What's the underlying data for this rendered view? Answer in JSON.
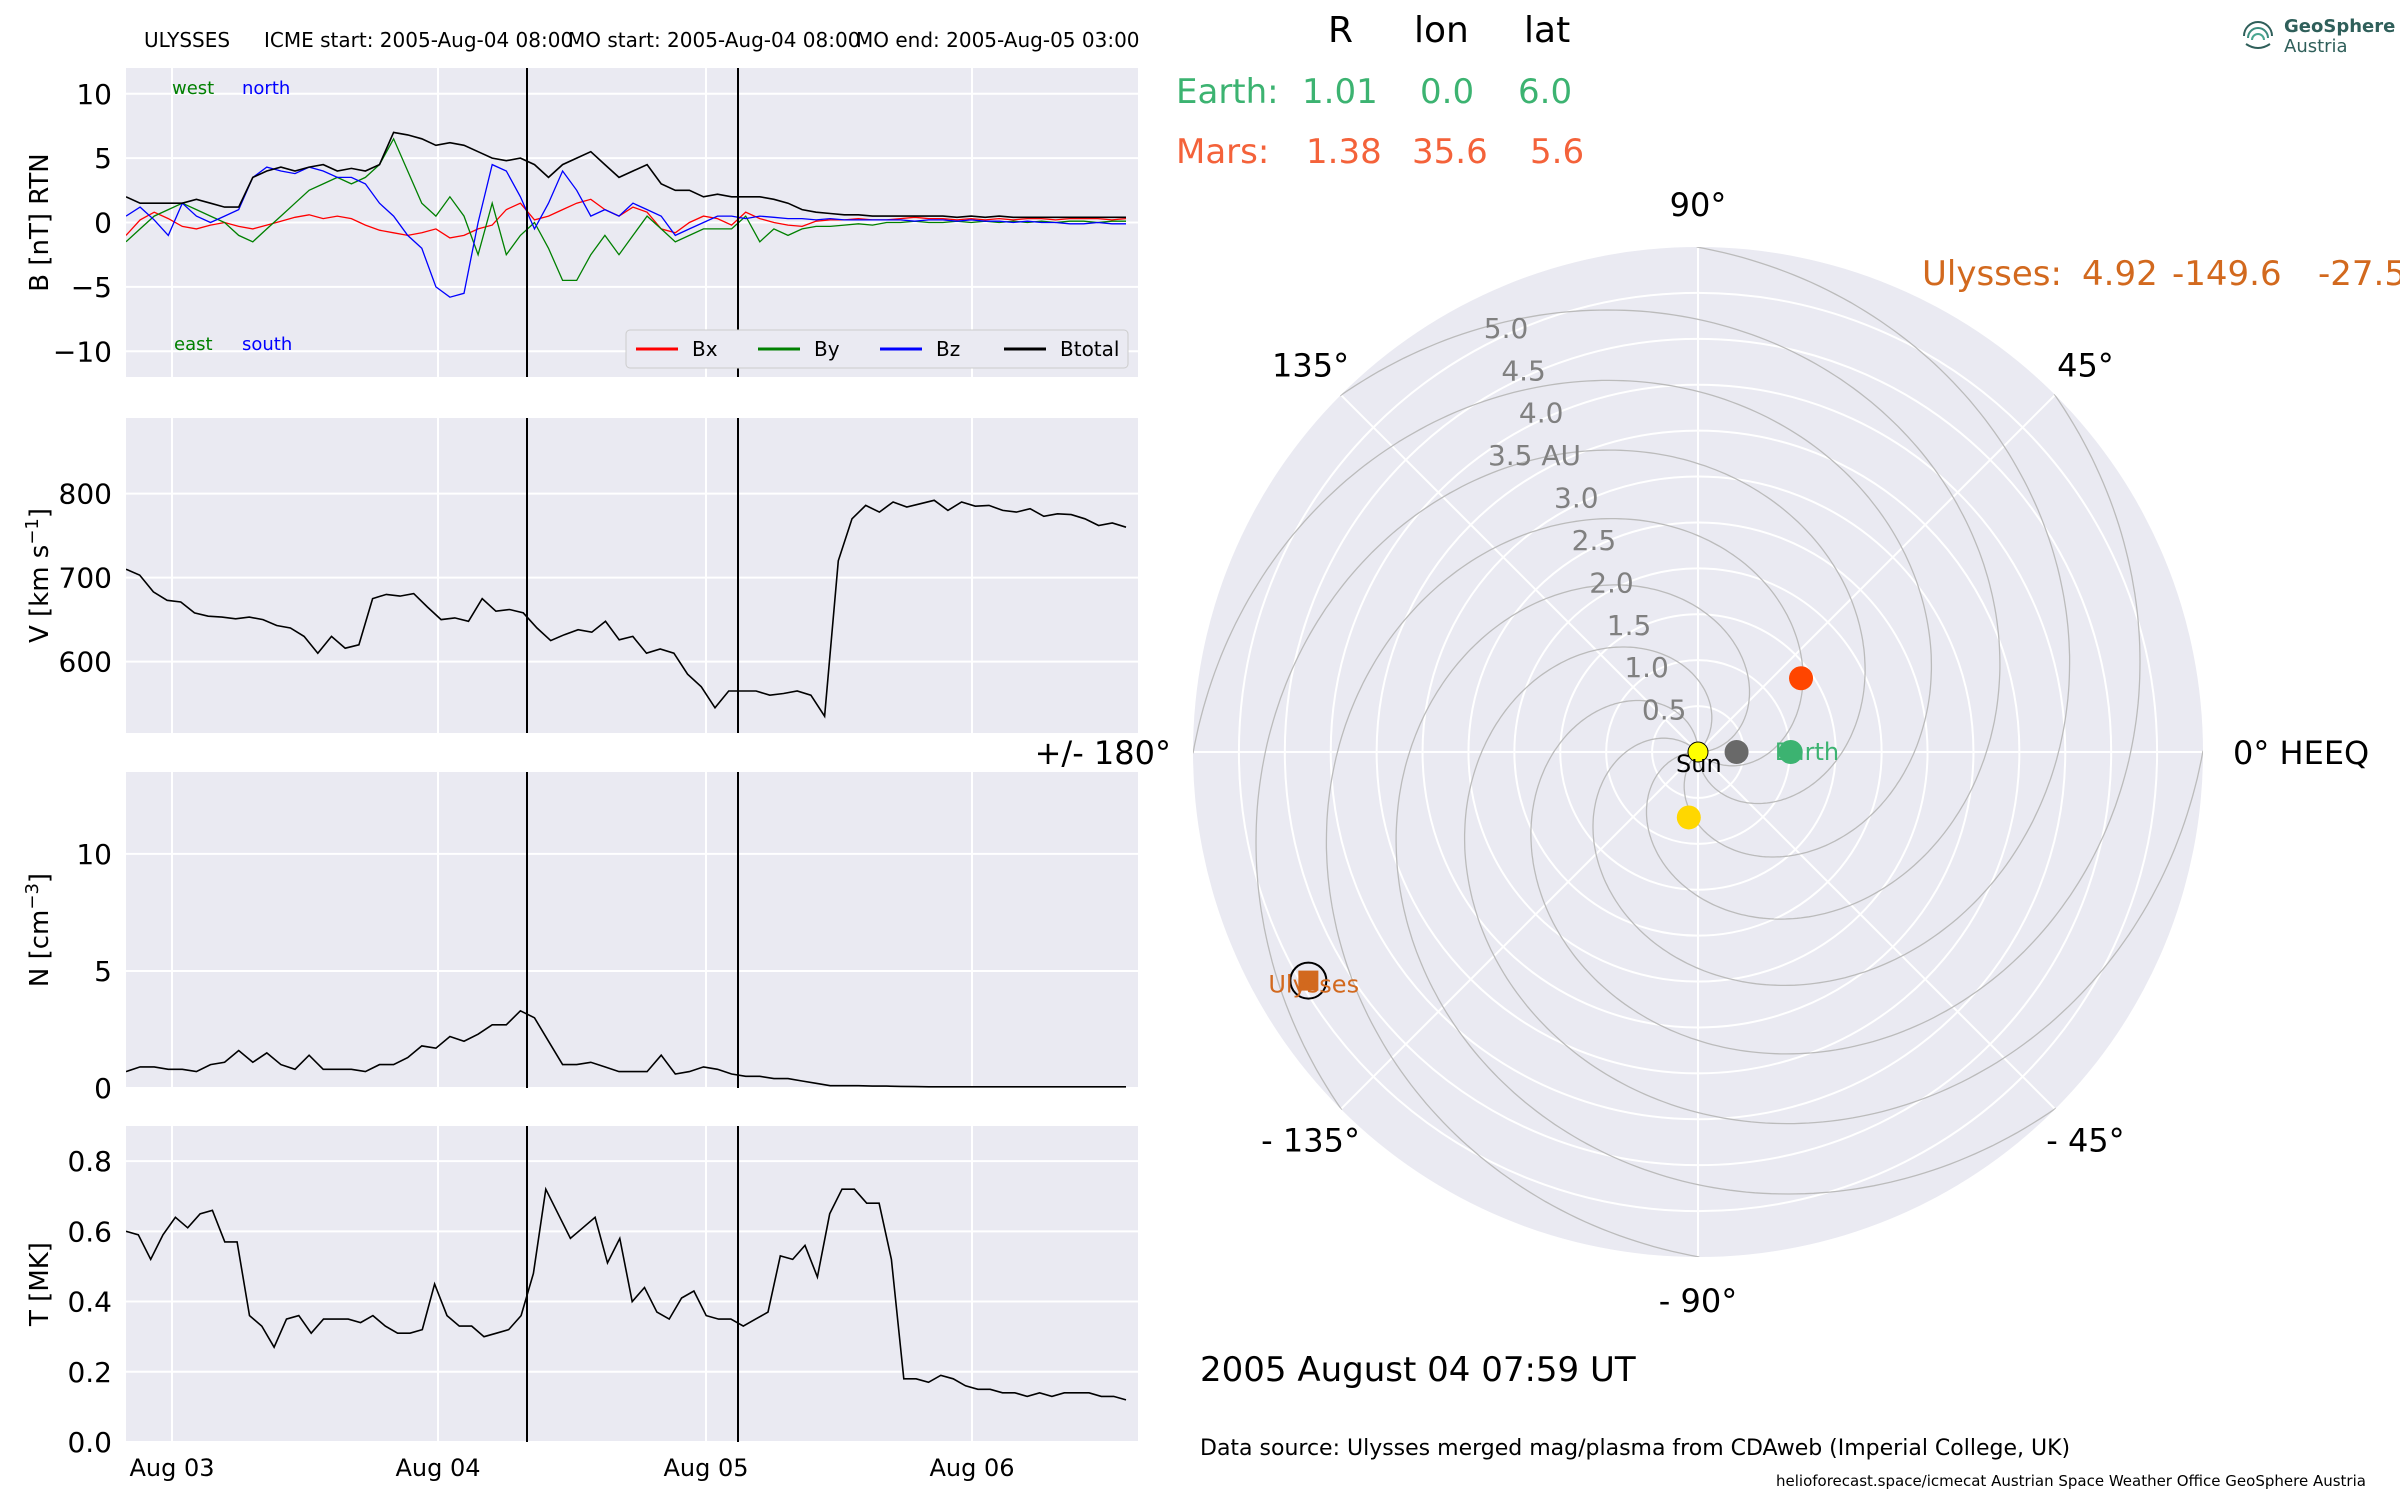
{
  "header": {
    "spacecraft": "ULYSSES",
    "icme_start": "ICME start: 2005-Aug-04 08:00",
    "mo_start": "MO start: 2005-Aug-04 08:00",
    "mo_end": "MO end: 2005-Aug-05 03:00"
  },
  "position_table": {
    "headers": [
      "R",
      "lon",
      "lat"
    ],
    "rows": [
      {
        "name": "Earth:",
        "R": "1.01",
        "lon": "0.0",
        "lat": "6.0",
        "color": "#3cb371"
      },
      {
        "name": "Mars:",
        "R": "1.38",
        "lon": "35.6",
        "lat": "5.6",
        "color": "#f4623a"
      }
    ],
    "ulysses": {
      "label": "Ulysses:",
      "R": "4.92",
      "lon": "-149.6",
      "lat": "-27.5",
      "color": "#d2691e"
    }
  },
  "colors": {
    "Bx": "#ff0000",
    "By": "#008000",
    "Bz": "#0000ff",
    "Btotal": "#000000",
    "panel_bg": "#eaeaf2",
    "grid": "#ffffff",
    "earth": "#3cb371",
    "mars": "#ff4500",
    "ulysses": "#d2691e",
    "sun": "#ffff00",
    "venus": "#ffd700",
    "mercury": "#696969"
  },
  "timestamp": "2005 August 04  07:59 UT",
  "data_source": "Data source: Ulysses merged mag/plasma from CDAweb (Imperial College, UK)",
  "credits": "helioforecast.space/icmecat   Austrian Space Weather Office   GeoSphere Austria",
  "logo": {
    "line1": "GeoSphere",
    "line2": "Austria"
  },
  "chart_data": [
    {
      "type": "line",
      "ylabel": "B [nT] RTN",
      "ylim": [
        -12,
        12
      ],
      "yticks": [
        10,
        5,
        0,
        -5,
        -10
      ],
      "yticklabels": [
        "10",
        "5",
        "0",
        "−5",
        "−10"
      ],
      "xlim_hours_from_aug03_00": [
        -14,
        95
      ],
      "xticks": [
        "Aug 03",
        "Aug 04",
        "Aug 05",
        "Aug 06"
      ],
      "annotations": {
        "west": "west",
        "north": "north",
        "east": "east",
        "south": "south"
      },
      "legend": {
        "position": "bottom-right",
        "entries": [
          "Bx",
          "By",
          "Bz",
          "Btotal"
        ]
      },
      "vlines": [
        "2005-08-04 08:00",
        "2005-08-05 03:00"
      ],
      "series": [
        {
          "name": "Bx",
          "values": [
            -1.0,
            0.2,
            0.8,
            0.3,
            -0.3,
            -0.5,
            -0.2,
            0.0,
            -0.3,
            -0.5,
            -0.2,
            0.1,
            0.4,
            0.6,
            0.3,
            0.5,
            0.3,
            -0.2,
            -0.6,
            -0.8,
            -1.0,
            -0.8,
            -0.5,
            -1.2,
            -1.0,
            -0.5,
            -0.2,
            1.0,
            1.5,
            0.2,
            0.5,
            1.0,
            1.5,
            1.8,
            1.0,
            0.5,
            1.2,
            0.8,
            -0.5,
            -0.8,
            0.0,
            0.5,
            0.3,
            -0.2,
            0.8,
            0.3,
            0.0,
            -0.2,
            -0.3,
            0.1,
            0.2,
            0.2,
            0.3,
            0.2,
            0.2,
            0.3,
            0.4,
            0.3,
            0.3,
            0.2,
            0.3,
            0.2,
            0.3,
            0.2,
            0.3,
            0.3,
            0.2,
            0.3,
            0.3,
            0.3,
            0.2,
            0.3
          ]
        },
        {
          "name": "By",
          "values": [
            -1.5,
            -0.5,
            0.5,
            1.0,
            1.5,
            1.0,
            0.5,
            0.0,
            -1.0,
            -1.5,
            -0.5,
            0.5,
            1.5,
            2.5,
            3.0,
            3.5,
            3.0,
            3.5,
            4.5,
            6.5,
            4.0,
            1.5,
            0.5,
            2.0,
            0.5,
            -2.5,
            1.5,
            -2.5,
            -1.0,
            0.0,
            -2.0,
            -4.5,
            -4.5,
            -2.5,
            -1.0,
            -2.5,
            -1.0,
            0.5,
            -0.5,
            -1.5,
            -1.0,
            -0.5,
            -0.5,
            -0.5,
            0.5,
            -1.5,
            -0.5,
            -1.0,
            -0.5,
            -0.3,
            -0.3,
            -0.2,
            -0.1,
            -0.2,
            0.0,
            0.0,
            0.1,
            0.0,
            0.0,
            0.1,
            0.0,
            0.1,
            0.0,
            0.1,
            0.0,
            0.1,
            0.0,
            0.1,
            0.1,
            0.0,
            0.1,
            0.1
          ]
        },
        {
          "name": "Bz",
          "values": [
            0.5,
            1.2,
            0.2,
            -1.0,
            1.5,
            0.5,
            0.0,
            0.5,
            1.0,
            3.5,
            4.3,
            4.0,
            3.8,
            4.3,
            4.0,
            3.5,
            3.5,
            3.0,
            1.5,
            0.5,
            -1.0,
            -2.0,
            -5.0,
            -5.8,
            -5.5,
            0.0,
            4.5,
            4.0,
            2.0,
            -0.5,
            1.5,
            4.0,
            2.5,
            0.5,
            1.0,
            0.5,
            1.5,
            1.0,
            0.5,
            -1.0,
            -0.5,
            0.0,
            0.5,
            0.5,
            0.3,
            0.5,
            0.4,
            0.3,
            0.3,
            0.2,
            0.3,
            0.2,
            0.2,
            0.2,
            0.2,
            0.2,
            0.1,
            0.2,
            0.2,
            0.1,
            0.2,
            0.1,
            0.1,
            0.0,
            0.1,
            0.0,
            0.0,
            -0.1,
            -0.1,
            0.0,
            -0.1,
            -0.1
          ]
        },
        {
          "name": "Btotal",
          "values": [
            2.0,
            1.5,
            1.5,
            1.5,
            1.5,
            1.8,
            1.5,
            1.2,
            1.2,
            3.5,
            4.0,
            4.3,
            4.0,
            4.3,
            4.5,
            4.0,
            4.2,
            4.0,
            4.5,
            7.0,
            6.8,
            6.5,
            6.0,
            6.2,
            6.0,
            5.5,
            5.0,
            4.8,
            5.0,
            4.5,
            3.5,
            4.5,
            5.0,
            5.5,
            4.5,
            3.5,
            4.0,
            4.5,
            3.0,
            2.5,
            2.5,
            2.0,
            2.2,
            2.0,
            2.0,
            2.0,
            1.8,
            1.5,
            1.0,
            0.8,
            0.7,
            0.6,
            0.6,
            0.5,
            0.5,
            0.5,
            0.5,
            0.5,
            0.5,
            0.4,
            0.5,
            0.4,
            0.5,
            0.4,
            0.4,
            0.4,
            0.4,
            0.4,
            0.4,
            0.4,
            0.4,
            0.4
          ]
        }
      ]
    },
    {
      "type": "line",
      "ylabel": "V [km s",
      "ylabel_sup": "−1",
      "ylabel_end": "]",
      "ylim": [
        515,
        890
      ],
      "yticks": [
        800,
        700,
        600
      ],
      "yticklabels": [
        "800",
        "700",
        "600"
      ],
      "xlim_hours_from_aug03_00": [
        -14,
        95
      ],
      "xticks": [
        "Aug 03",
        "Aug 04",
        "Aug 05",
        "Aug 06"
      ],
      "vlines": [
        "2005-08-04 08:00",
        "2005-08-05 03:00"
      ],
      "series": [
        {
          "name": "V",
          "values": [
            710,
            703,
            683,
            673,
            671,
            658,
            654,
            653,
            651,
            653,
            650,
            643,
            640,
            630,
            610,
            630,
            616,
            620,
            675,
            680,
            678,
            681,
            665,
            650,
            652,
            648,
            675,
            660,
            662,
            658,
            640,
            625,
            632,
            638,
            635,
            648,
            626,
            630,
            610,
            615,
            610,
            585,
            570,
            545,
            565,
            565,
            565,
            560,
            562,
            565,
            560,
            535,
            720,
            770,
            786,
            778,
            790,
            784,
            788,
            792,
            780,
            790,
            785,
            786,
            780,
            778,
            782,
            773,
            776,
            775,
            770,
            762,
            765,
            760
          ]
        }
      ]
    },
    {
      "type": "line",
      "ylabel": "N [cm",
      "ylabel_sup": "−3",
      "ylabel_end": "]",
      "ylim": [
        0,
        13.5
      ],
      "yticks": [
        10,
        5,
        0
      ],
      "yticklabels": [
        "10",
        "5",
        "0"
      ],
      "xlim_hours_from_aug03_00": [
        -14,
        95
      ],
      "xticks": [
        "Aug 03",
        "Aug 04",
        "Aug 05",
        "Aug 06"
      ],
      "vlines": [
        "2005-08-04 08:00",
        "2005-08-05 03:00"
      ],
      "series": [
        {
          "name": "N",
          "values": [
            0.7,
            0.9,
            0.9,
            0.8,
            0.8,
            0.7,
            1.0,
            1.1,
            1.6,
            1.1,
            1.5,
            1.0,
            0.8,
            1.4,
            0.8,
            0.8,
            0.8,
            0.7,
            1.0,
            1.0,
            1.3,
            1.8,
            1.7,
            2.2,
            2.0,
            2.3,
            2.7,
            2.7,
            3.3,
            3.0,
            2.0,
            1.0,
            1.0,
            1.1,
            0.9,
            0.7,
            0.7,
            0.7,
            1.4,
            0.6,
            0.7,
            0.9,
            0.8,
            0.6,
            0.5,
            0.5,
            0.4,
            0.4,
            0.3,
            0.2,
            0.1,
            0.1,
            0.1,
            0.08,
            0.08,
            0.07,
            0.06,
            0.05,
            0.05,
            0.05,
            0.05,
            0.05,
            0.05,
            0.05,
            0.05,
            0.05,
            0.05,
            0.05,
            0.05,
            0.05,
            0.05,
            0.05
          ]
        }
      ]
    },
    {
      "type": "line",
      "ylabel": "T [MK]",
      "ylim": [
        0,
        0.9
      ],
      "yticks": [
        0.8,
        0.6,
        0.4,
        0.2,
        0.0
      ],
      "yticklabels": [
        "0.8",
        "0.6",
        "0.4",
        "0.2",
        "0.0"
      ],
      "xlim_hours_from_aug03_00": [
        -14,
        95
      ],
      "xticks": [
        "Aug 03",
        "Aug 04",
        "Aug 05",
        "Aug 06"
      ],
      "vlines": [
        "2005-08-04 08:00",
        "2005-08-05 03:00"
      ],
      "series": [
        {
          "name": "T",
          "values": [
            0.6,
            0.59,
            0.52,
            0.59,
            0.64,
            0.61,
            0.65,
            0.66,
            0.57,
            0.57,
            0.36,
            0.33,
            0.27,
            0.35,
            0.36,
            0.31,
            0.35,
            0.35,
            0.35,
            0.34,
            0.36,
            0.33,
            0.31,
            0.31,
            0.32,
            0.45,
            0.36,
            0.33,
            0.33,
            0.3,
            0.31,
            0.32,
            0.36,
            0.48,
            0.72,
            0.65,
            0.58,
            0.61,
            0.64,
            0.51,
            0.58,
            0.4,
            0.44,
            0.37,
            0.35,
            0.41,
            0.43,
            0.36,
            0.35,
            0.35,
            0.33,
            0.35,
            0.37,
            0.53,
            0.52,
            0.56,
            0.47,
            0.65,
            0.72,
            0.72,
            0.68,
            0.68,
            0.52,
            0.18,
            0.18,
            0.17,
            0.19,
            0.18,
            0.16,
            0.15,
            0.15,
            0.14,
            0.14,
            0.13,
            0.14,
            0.13,
            0.14,
            0.14,
            0.14,
            0.13,
            0.13,
            0.12
          ]
        }
      ]
    },
    {
      "type": "scatter",
      "subtype": "polar",
      "rlim": [
        0,
        5.5
      ],
      "rticks": [
        0.5,
        1.0,
        1.5,
        2.0,
        2.5,
        3.0,
        3.5,
        4.0,
        4.5,
        5.0
      ],
      "rticklabels": [
        "0.5",
        "1.0",
        "1.5",
        "2.0",
        "2.5",
        "3.0",
        "3.5 AU",
        "4.0",
        "4.5",
        "5.0"
      ],
      "angle_labels": [
        {
          "deg": 0,
          "text": "0° HEEQ"
        },
        {
          "deg": 45,
          "text": "45°"
        },
        {
          "deg": 90,
          "text": "90°"
        },
        {
          "deg": 135,
          "text": "135°"
        },
        {
          "deg": 180,
          "text": "+/- 180°"
        },
        {
          "deg": -135,
          "text": "- 135°"
        },
        {
          "deg": -90,
          "text": "- 90°"
        },
        {
          "deg": -45,
          "text": "- 45°"
        }
      ],
      "bodies": [
        {
          "name": "Sun",
          "label": "Sun",
          "r": 0.0,
          "lon": 0.0,
          "color": "#ffff00"
        },
        {
          "name": "Mercury",
          "r": 0.42,
          "lon": 0.0,
          "color": "#696969"
        },
        {
          "name": "Venus",
          "r": 0.72,
          "lon": -98.0,
          "color": "#ffd700"
        },
        {
          "name": "Earth",
          "label": "Earth",
          "r": 1.01,
          "lon": 0.0,
          "color": "#3cb371"
        },
        {
          "name": "Mars",
          "r": 1.38,
          "lon": 35.6,
          "color": "#ff4500"
        },
        {
          "name": "Ulysses",
          "label": "Ulysses",
          "r": 4.92,
          "lon": -149.6,
          "color": "#d2691e"
        }
      ],
      "parker_spiral_rotation_deg": [
        0,
        45,
        90,
        135,
        180,
        225,
        270,
        315
      ]
    }
  ]
}
